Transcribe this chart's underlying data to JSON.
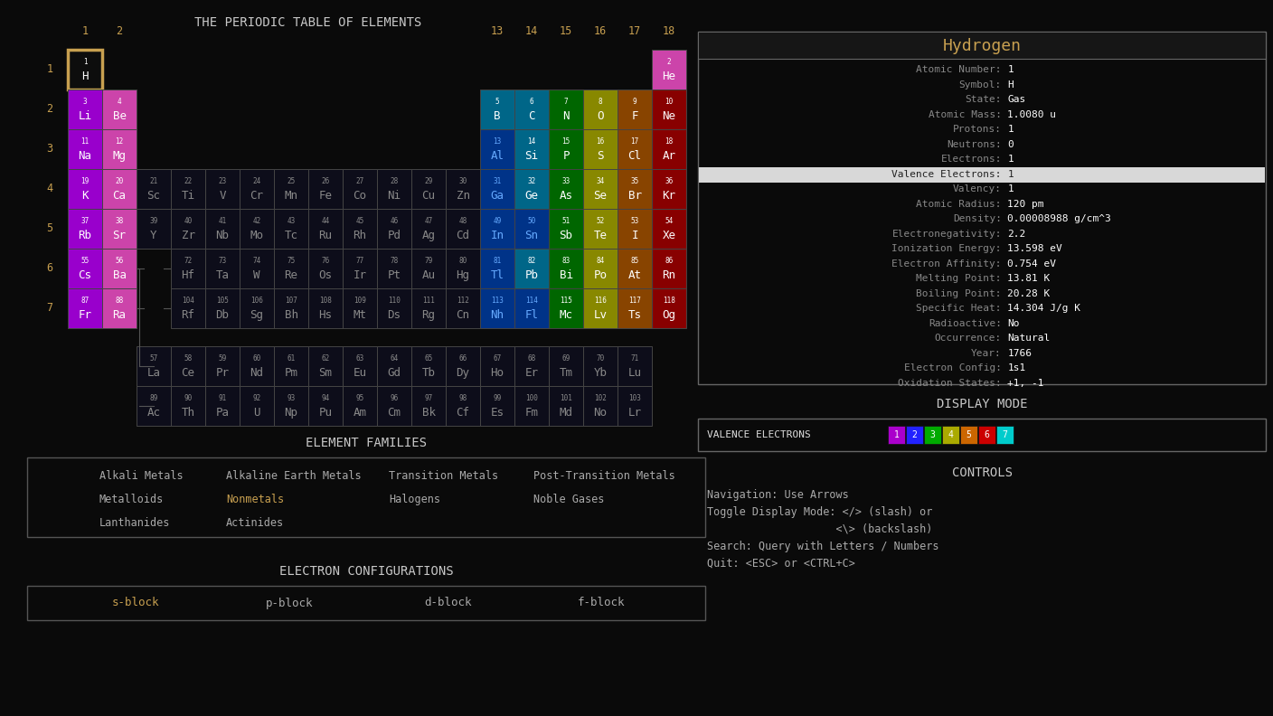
{
  "bg_color": "#0a0a0a",
  "title": "THE PERIODIC TABLE OF ELEMENTS",
  "title_color": "#c8c8c8",
  "group_label_color": "#c8a050",
  "period_label_color": "#c8a050",
  "font": "DejaVu Sans Mono",
  "info_title": "Hydrogen",
  "info_title_color": "#c8a050",
  "info_text_color": "#888888",
  "info_value_color": "#ffffff",
  "selected_border_color": "#c8a050",
  "element_border_color": "#444444",
  "nonmetals_highlight_color": "#c8a050",
  "sblock_highlight_color": "#c8a050",
  "valence_colors": [
    "#aa00cc",
    "#2222ff",
    "#00aa00",
    "#aaaa00",
    "#cc6600",
    "#cc0000",
    "#00cccc"
  ],
  "info_lines": [
    [
      "Atomic Number:",
      "1"
    ],
    [
      "Symbol:",
      "H"
    ],
    [
      "State:",
      "Gas"
    ],
    [
      "Atomic Mass:",
      "1.0080 u"
    ],
    [
      "Protons:",
      "1"
    ],
    [
      "Neutrons:",
      "0"
    ],
    [
      "Electrons:",
      "1"
    ],
    [
      "Valence Electrons:",
      "1"
    ],
    [
      "Valency:",
      "1"
    ],
    [
      "Atomic Radius:",
      "120 pm"
    ],
    [
      "Density:",
      "0.00008988 g/cm^3"
    ],
    [
      "Electronegativity:",
      "2.2"
    ],
    [
      "Ionization Energy:",
      "13.598 eV"
    ],
    [
      "Electron Affinity:",
      "0.754 eV"
    ],
    [
      "Melting Point:",
      "13.81 K"
    ],
    [
      "Boiling Point:",
      "20.28 K"
    ],
    [
      "Specific Heat:",
      "14.304 J/g K"
    ],
    [
      "Radioactive:",
      "No"
    ],
    [
      "Occurrence:",
      "Natural"
    ],
    [
      "Year:",
      "1766"
    ],
    [
      "Electron Config:",
      "1s1"
    ],
    [
      "Oxidation States:",
      "+1, -1"
    ]
  ],
  "element_families": [
    [
      "Alkali Metals",
      "Alkaline Earth Metals",
      "Transition Metals",
      "Post-Transition Metals"
    ],
    [
      "Metalloids",
      "Nonmetals",
      "Halogens",
      "Noble Gases"
    ],
    [
      "Lanthanides",
      "Actinides",
      "",
      ""
    ]
  ],
  "electron_configs": [
    "s-block",
    "p-block",
    "d-block",
    "f-block"
  ],
  "controls_lines": [
    "Navigation: Use Arrows",
    "Toggle Display Mode: </> (slash) or",
    "                    <\\> (backslash)",
    "Search: Query with Letters / Numbers",
    "Quit: <ESC> or <CTRL+C>"
  ]
}
